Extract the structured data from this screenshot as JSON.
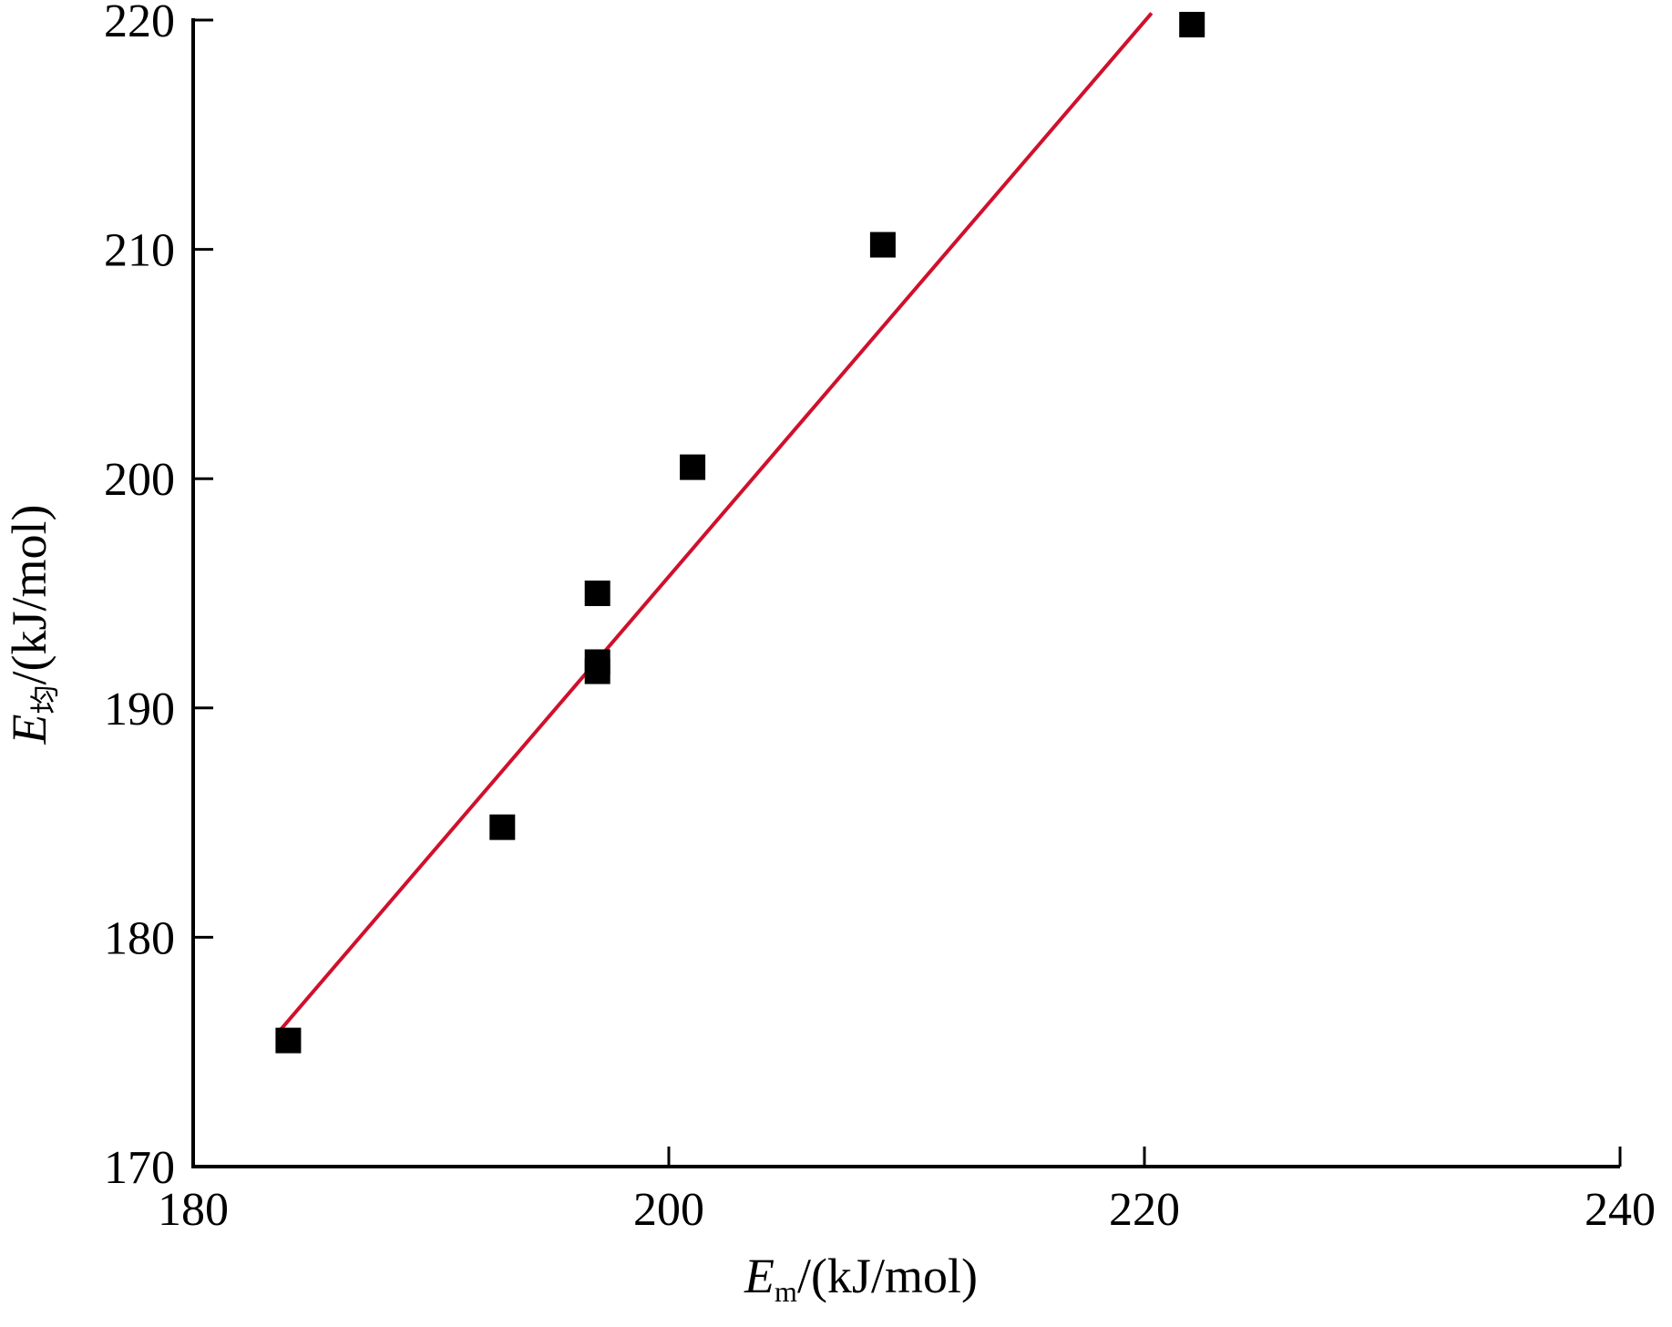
{
  "chart_data": {
    "type": "scatter",
    "title": "",
    "xlabel": {
      "symbol": "E",
      "subscript": "m",
      "unit": "/(kJ/mol)"
    },
    "ylabel": {
      "symbol": "E",
      "subscript": "均",
      "unit": "/(kJ/mol)"
    },
    "xlim": [
      180,
      240
    ],
    "ylim": [
      170,
      220
    ],
    "xticks": [
      180,
      200,
      220,
      240
    ],
    "yticks": [
      170,
      180,
      190,
      200,
      210,
      220
    ],
    "grid": false,
    "legend": "none",
    "series": [
      {
        "marker": "square",
        "color": "#000000",
        "points": [
          {
            "x": 184,
            "y": 175.5
          },
          {
            "x": 193,
            "y": 184.8
          },
          {
            "x": 197,
            "y": 191.6
          },
          {
            "x": 197,
            "y": 192.0
          },
          {
            "x": 197,
            "y": 195.0
          },
          {
            "x": 201,
            "y": 200.5
          },
          {
            "x": 209,
            "y": 210.2
          },
          {
            "x": 222,
            "y": 219.8
          }
        ]
      }
    ],
    "fit_line": {
      "color": "#d0102c",
      "x": [
        183.7,
        220.3
      ],
      "y": [
        176.0,
        220.3
      ]
    }
  }
}
